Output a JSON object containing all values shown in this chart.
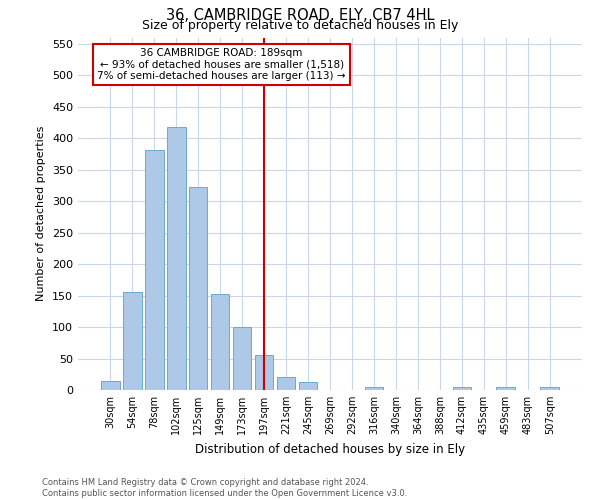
{
  "title1": "36, CAMBRIDGE ROAD, ELY, CB7 4HL",
  "title2": "Size of property relative to detached houses in Ely",
  "xlabel": "Distribution of detached houses by size in Ely",
  "ylabel": "Number of detached properties",
  "footnote": "Contains HM Land Registry data © Crown copyright and database right 2024.\nContains public sector information licensed under the Open Government Licence v3.0.",
  "bar_labels": [
    "30sqm",
    "54sqm",
    "78sqm",
    "102sqm",
    "125sqm",
    "149sqm",
    "173sqm",
    "197sqm",
    "221sqm",
    "245sqm",
    "269sqm",
    "292sqm",
    "316sqm",
    "340sqm",
    "364sqm",
    "388sqm",
    "412sqm",
    "435sqm",
    "459sqm",
    "483sqm",
    "507sqm"
  ],
  "bar_values": [
    15,
    155,
    382,
    418,
    322,
    152,
    100,
    55,
    20,
    12,
    0,
    0,
    5,
    0,
    0,
    0,
    5,
    0,
    5,
    0,
    5
  ],
  "bar_color": "#aec8e8",
  "bar_edge_color": "#6aaad0",
  "grid_color": "#c8d8e8",
  "vline_x": 7.0,
  "vline_color": "#cc0000",
  "annotation_text": "36 CAMBRIDGE ROAD: 189sqm\n← 93% of detached houses are smaller (1,518)\n7% of semi-detached houses are larger (113) →",
  "annotation_box_color": "#ffffff",
  "annotation_border_color": "#cc0000",
  "ylim": [
    0,
    560
  ],
  "yticks": [
    0,
    50,
    100,
    150,
    200,
    250,
    300,
    350,
    400,
    450,
    500,
    550
  ]
}
